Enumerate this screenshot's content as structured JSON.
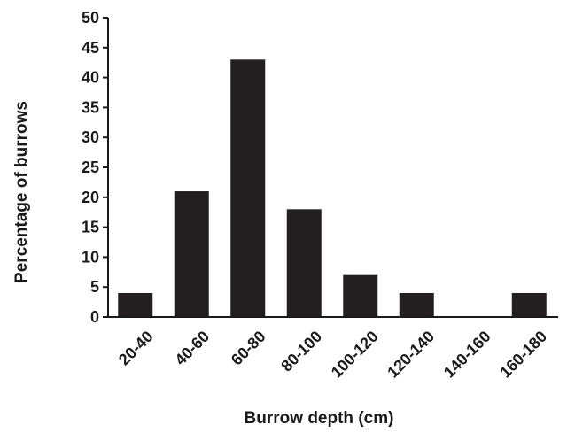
{
  "chart_data": {
    "type": "bar",
    "title": "",
    "xlabel": "Burrow depth (cm)",
    "ylabel": "Percentage of burrows",
    "categories": [
      "20-40",
      "40-60",
      "60-80",
      "80-100",
      "100-120",
      "120-140",
      "140-160",
      "160-180"
    ],
    "values": [
      4,
      21,
      43,
      18,
      7,
      4,
      0,
      4
    ],
    "ylim": [
      0,
      50
    ],
    "yticks": [
      0,
      5,
      10,
      15,
      20,
      25,
      30,
      35,
      40,
      45,
      50
    ],
    "grid": false,
    "bar_color": "#231f20"
  }
}
